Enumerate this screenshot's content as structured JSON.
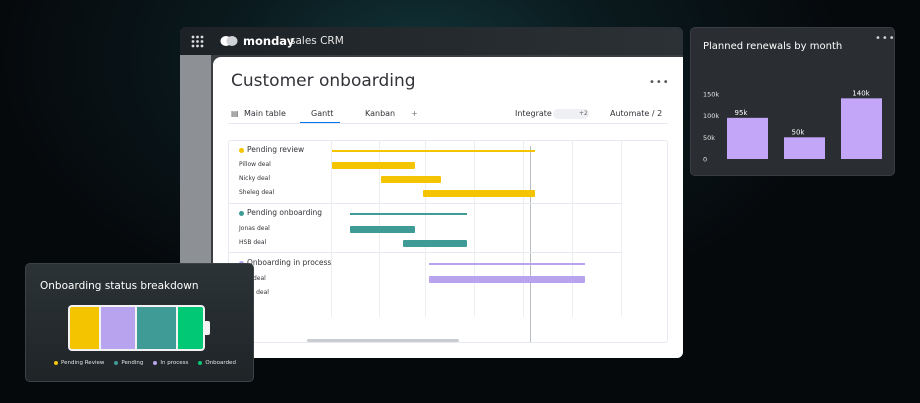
{
  "app": {
    "brand": "monday",
    "product": "sales CRM"
  },
  "board": {
    "title": "Customer onboarding",
    "tabs": [
      "Main table",
      "Gantt",
      "Kanban",
      "+"
    ],
    "integrate": "Integrate",
    "integrate_count": "+2",
    "automate": "Automate / 2"
  },
  "gantt": {
    "groups": [
      {
        "name": "Pending review",
        "items": [
          "Pillow deal",
          "Nicky deal",
          "Sheleg deal"
        ]
      },
      {
        "name": "Pending onboarding",
        "items": [
          "Jonas deal",
          "HSB deal"
        ]
      },
      {
        "name": "Onboarding in process",
        "items": [
          "deal",
          "ly deal"
        ]
      }
    ]
  },
  "renewals": {
    "title": "Planned renewals by month",
    "type": "bar",
    "values": [
      95000,
      50000,
      140000
    ],
    "value_labels": [
      "95k",
      "50k",
      "140k"
    ],
    "color": "#c3a6f7",
    "ylim": [
      0,
      150000
    ],
    "yticks": [
      0,
      {
        "value": 50000,
        "label": "50k"
      },
      {
        "value": 100000,
        "label": "100k"
      },
      {
        "value": 150000,
        "label": "150k"
      }
    ]
  },
  "status": {
    "title": "Onboarding status breakdown",
    "legend": [
      {
        "name": "Pending Review",
        "color": "#f5c400"
      },
      {
        "name": "Pending",
        "color": "#3f9b95"
      },
      {
        "name": "In process",
        "color": "#b8a4ee"
      },
      {
        "name": "Onboarded",
        "color": "#00c875"
      }
    ]
  }
}
